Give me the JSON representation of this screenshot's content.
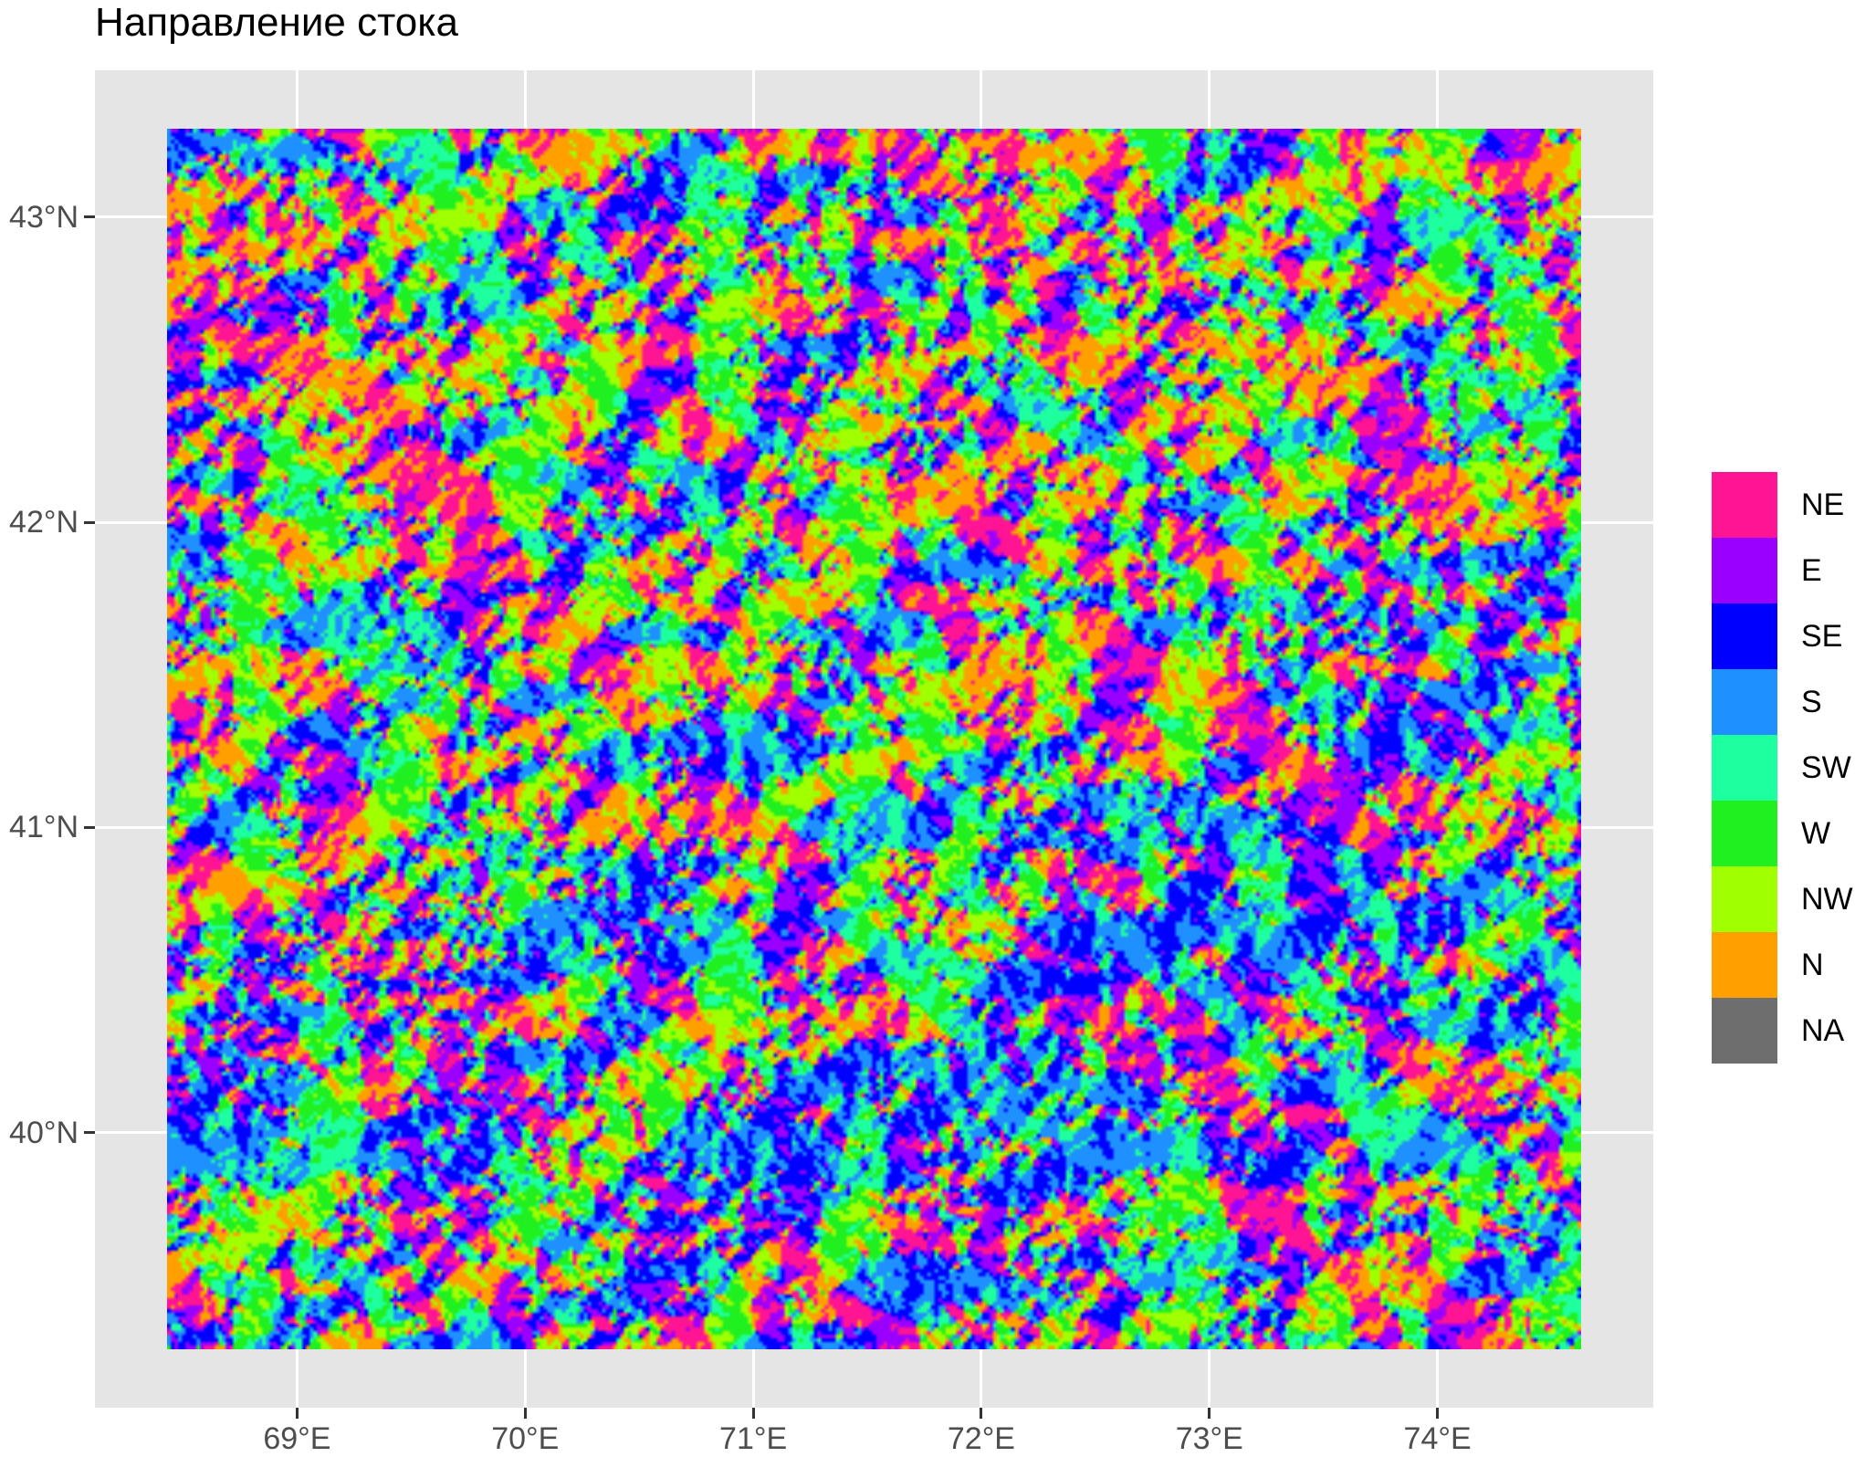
{
  "title": "Направление стока",
  "map_data": {
    "type": "heatmap",
    "x_range": [
      68.43,
      74.63
    ],
    "y_range": [
      39.29,
      43.29
    ],
    "x_ticks": [
      {
        "value": 69,
        "label": "69°E"
      },
      {
        "value": 70,
        "label": "70°E"
      },
      {
        "value": 71,
        "label": "71°E"
      },
      {
        "value": 72,
        "label": "72°E"
      },
      {
        "value": 73,
        "label": "73°E"
      },
      {
        "value": 74,
        "label": "74°E"
      }
    ],
    "y_ticks": [
      {
        "value": 43,
        "label": "43°N"
      },
      {
        "value": 42,
        "label": "42°N"
      },
      {
        "value": 41,
        "label": "41°N"
      },
      {
        "value": 40,
        "label": "40°N"
      }
    ],
    "legend_position": "right",
    "legend": [
      {
        "label": "NE",
        "color": "#ff1493"
      },
      {
        "label": "E",
        "color": "#9a00ff"
      },
      {
        "label": "SE",
        "color": "#0000ff"
      },
      {
        "label": "S",
        "color": "#1e90ff"
      },
      {
        "label": "SW",
        "color": "#1effa0"
      },
      {
        "label": "W",
        "color": "#20f020"
      },
      {
        "label": "NW",
        "color": "#a0ff00"
      },
      {
        "label": "N",
        "color": "#ffa000"
      },
      {
        "label": "NA",
        "color": "#6e6e6e"
      }
    ],
    "panel_background": "#e5e5e5",
    "grid": true
  }
}
